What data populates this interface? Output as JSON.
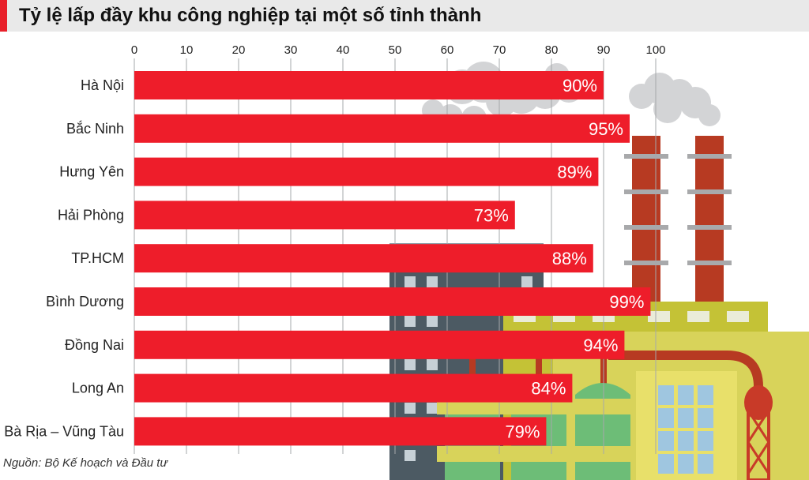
{
  "header": {
    "title": "Tỷ lệ lấp đầy khu công nghiệp tại một số tỉnh thành"
  },
  "footer": {
    "source": "Nguồn: Bộ Kế hoạch và Đầu tư"
  },
  "colors": {
    "bar": "#ee1d2a",
    "accent": "#e8202a",
    "title_bg": "#e9e9e9"
  },
  "chart_data": {
    "type": "bar",
    "orientation": "horizontal",
    "title": "Tỷ lệ lấp đầy khu công nghiệp tại một số tỉnh thành",
    "categories": [
      "Hà Nội",
      "Bắc Ninh",
      "Hưng Yên",
      "Hải Phòng",
      "TP.HCM",
      "Bình Dương",
      "Đồng Nai",
      "Long An",
      "Bà Rịa – Vũng Tàu"
    ],
    "values": [
      90,
      95,
      89,
      73,
      88,
      99,
      94,
      84,
      79
    ],
    "value_labels": [
      "90%",
      "95%",
      "89%",
      "73%",
      "88%",
      "99%",
      "94%",
      "84%",
      "79%"
    ],
    "xlim": [
      0,
      100
    ],
    "xticks": [
      "0",
      "10",
      "20",
      "30",
      "40",
      "50",
      "60",
      "70",
      "80",
      "90",
      "100"
    ],
    "tick_position": "top",
    "grid": true,
    "legend": "none"
  }
}
